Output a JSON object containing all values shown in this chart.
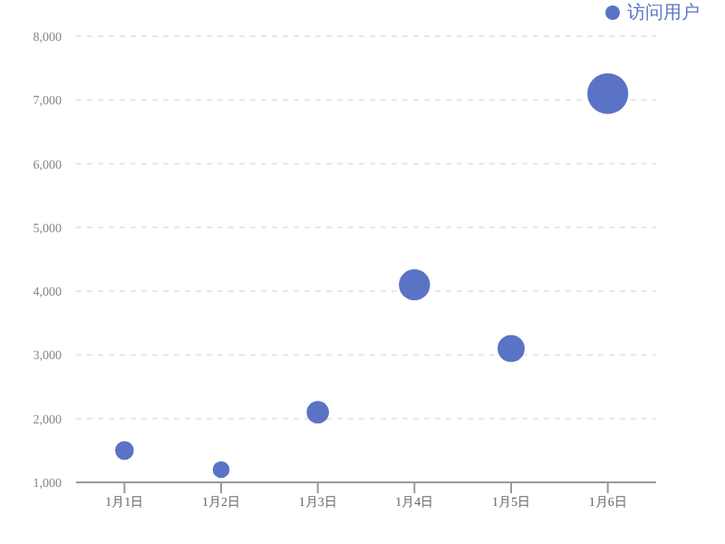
{
  "chart_data": {
    "type": "bubble",
    "categories": [
      "1月1日",
      "1月2日",
      "1月3日",
      "1月4日",
      "1月5日",
      "1月6日"
    ],
    "series": [
      {
        "name": "访问用户",
        "color": "#5b73c4",
        "values": [
          1500,
          1200,
          2100,
          4100,
          3100,
          7100
        ],
        "sizes": [
          0.21,
          0.17,
          0.3,
          0.58,
          0.44,
          1
        ]
      }
    ],
    "ylim": [
      1000,
      8000
    ],
    "yticks": [
      {
        "value": 1000,
        "label": "1,000"
      },
      {
        "value": 2000,
        "label": "2,000"
      },
      {
        "value": 3000,
        "label": "3,000"
      },
      {
        "value": 4000,
        "label": "4,000"
      },
      {
        "value": 5000,
        "label": "5,000"
      },
      {
        "value": 6000,
        "label": "6,000"
      },
      {
        "value": 7000,
        "label": "7,000"
      },
      {
        "value": 8000,
        "label": "8,000"
      }
    ],
    "grid": "y",
    "legend": "top right"
  }
}
